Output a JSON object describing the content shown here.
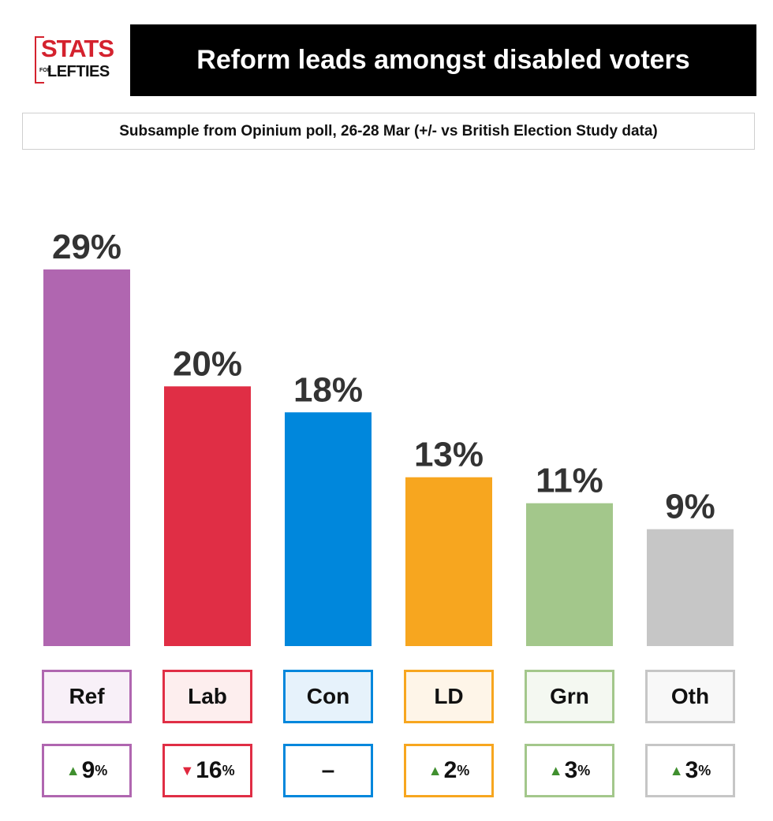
{
  "header": {
    "logo_top": "STATS",
    "logo_for": "FOR",
    "logo_bottom": "LEFTIES",
    "title": "Reform leads amongst disabled voters",
    "subtitle": "Subsample from Opinium poll, 26-28 Mar (+/- vs British Election Study data)"
  },
  "colors": {
    "up_arrow": "#3f8f2e",
    "down_arrow": "#e0283e"
  },
  "chart_data": {
    "type": "bar",
    "title": "Reform leads amongst disabled voters",
    "subtitle": "Subsample from Opinium poll, 26-28 Mar (+/- vs British Election Study data)",
    "categories": [
      "Ref",
      "Lab",
      "Con",
      "LD",
      "Grn",
      "Oth"
    ],
    "values": [
      29,
      20,
      18,
      13,
      11,
      9
    ],
    "value_labels": [
      "29%",
      "20%",
      "18%",
      "13%",
      "11%",
      "9%"
    ],
    "changes": [
      {
        "direction": "up",
        "value": "9",
        "unit": "%"
      },
      {
        "direction": "down",
        "value": "16",
        "unit": "%"
      },
      {
        "direction": "none",
        "value": "–",
        "unit": ""
      },
      {
        "direction": "up",
        "value": "2",
        "unit": "%"
      },
      {
        "direction": "up",
        "value": "3",
        "unit": "%"
      },
      {
        "direction": "up",
        "value": "3",
        "unit": "%"
      }
    ],
    "bar_colors": [
      "#b066b0",
      "#e02e45",
      "#0087dc",
      "#f7a61f",
      "#a3c78b",
      "#c6c6c6"
    ],
    "box_fills": [
      "#f8f0f8",
      "#fdeeee",
      "#e6f2fb",
      "#fef5e8",
      "#f4f8f1",
      "#f8f8f8"
    ],
    "ylim": [
      0,
      29
    ],
    "grid": false,
    "legend": "none"
  }
}
